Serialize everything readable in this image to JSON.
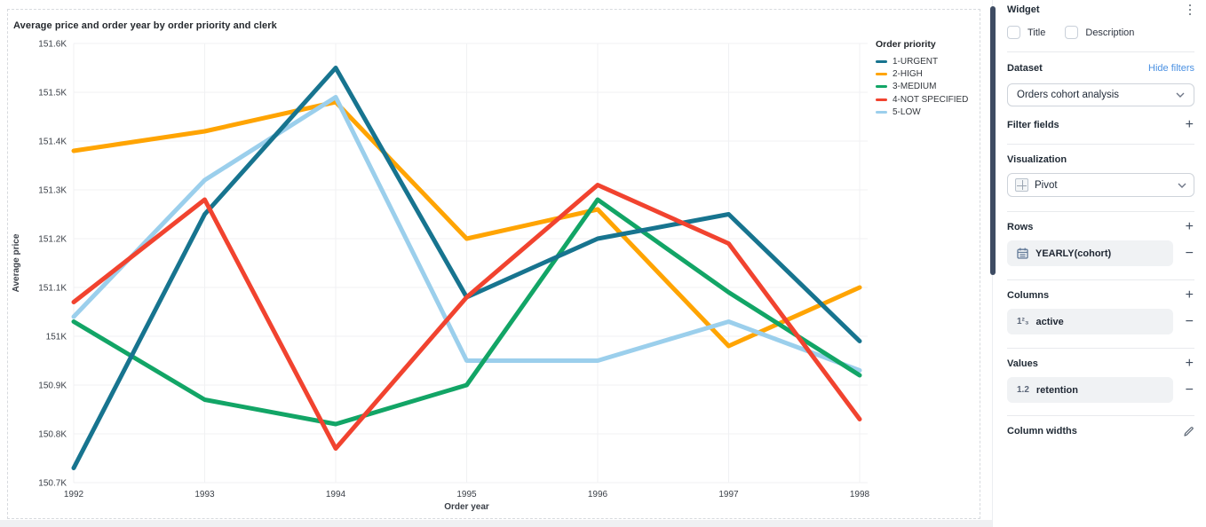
{
  "chart_data": {
    "type": "line",
    "title": "Average price and order year by order priority and clerk",
    "xlabel": "Order year",
    "ylabel": "Average price",
    "x": [
      1992,
      1993,
      1994,
      1995,
      1996,
      1997,
      1998
    ],
    "ylim": [
      150.7,
      151.6
    ],
    "y_unit": "K",
    "grid": true,
    "legend_position": "right",
    "legend_title": "Order priority",
    "y_ticks": [
      {
        "v": 150.7,
        "label": "150.7K"
      },
      {
        "v": 150.8,
        "label": "150.8K"
      },
      {
        "v": 150.9,
        "label": "150.9K"
      },
      {
        "v": 151.0,
        "label": "151K"
      },
      {
        "v": 151.1,
        "label": "151.1K"
      },
      {
        "v": 151.2,
        "label": "151.2K"
      },
      {
        "v": 151.3,
        "label": "151.3K"
      },
      {
        "v": 151.4,
        "label": "151.4K"
      },
      {
        "v": 151.5,
        "label": "151.5K"
      },
      {
        "v": 151.6,
        "label": "151.6K"
      }
    ],
    "series": [
      {
        "name": "1-URGENT",
        "color": "#17748f",
        "values": [
          150.73,
          151.25,
          151.55,
          151.08,
          151.2,
          151.25,
          150.99
        ]
      },
      {
        "name": "2-HIGH",
        "color": "#ffa402",
        "values": [
          151.38,
          151.42,
          151.48,
          151.2,
          151.26,
          150.98,
          151.1
        ]
      },
      {
        "name": "3-MEDIUM",
        "color": "#12a566",
        "values": [
          151.03,
          150.87,
          150.82,
          150.9,
          151.28,
          151.09,
          150.92
        ]
      },
      {
        "name": "4-NOT SPECIFIED",
        "color": "#f1432f",
        "values": [
          151.07,
          151.28,
          150.77,
          151.08,
          151.31,
          151.19,
          150.83
        ]
      },
      {
        "name": "5-LOW",
        "color": "#9bcfec",
        "values": [
          151.04,
          151.32,
          151.49,
          150.95,
          150.95,
          151.03,
          150.93
        ]
      }
    ],
    "draw_order": [
      1,
      4,
      2,
      0,
      3
    ]
  },
  "sidebar": {
    "widget": {
      "title": "Widget",
      "title_checkbox": "Title",
      "description_checkbox": "Description"
    },
    "dataset": {
      "label": "Dataset",
      "link": "Hide filters",
      "selected": "Orders cohort analysis"
    },
    "filter_fields": {
      "label": "Filter fields"
    },
    "visualization": {
      "label": "Visualization",
      "selected": "Pivot"
    },
    "rows": {
      "label": "Rows",
      "item": "YEARLY(cohort)"
    },
    "columns": {
      "label": "Columns",
      "item": "active",
      "icon_text": "1²₃"
    },
    "values": {
      "label": "Values",
      "item": "retention",
      "icon_text": "1.2"
    },
    "column_widths": {
      "label": "Column widths"
    }
  }
}
